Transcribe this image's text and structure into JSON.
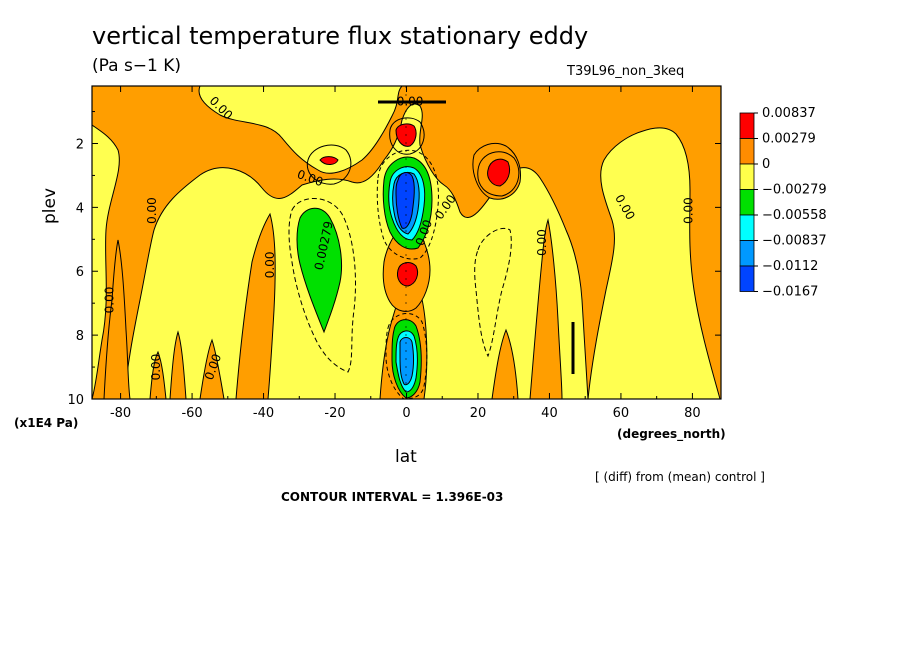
{
  "chart_data": {
    "type": "contour",
    "title": "vertical temperature flux stationary eddy",
    "units": "(Pa s−1 K)",
    "run_label": "T39L96_non_3keq",
    "xlabel": "lat",
    "xunit": "(degrees_north)",
    "ylabel": "plev",
    "yunit": "(x1E4 Pa)",
    "diff_note": "[ (diff) from (mean) control ]",
    "contour_interval_text": "CONTOUR INTERVAL = 1.396E-03",
    "xlim": [
      -88,
      88
    ],
    "ylim": [
      10,
      0.2
    ],
    "x_ticks": [
      -80,
      -60,
      -40,
      -20,
      0,
      20,
      40,
      60,
      80
    ],
    "y_ticks": [
      2,
      4,
      6,
      8,
      10
    ],
    "legend": {
      "placement": "right",
      "labels": [
        "0.00837",
        "0.00279",
        "0",
        "−0.00279",
        "−0.00558",
        "−0.00837",
        "−0.0112",
        "−0.0167"
      ],
      "colors": [
        "#ff0000",
        "#ff8c00",
        "#ffff4a",
        "#00e000",
        "#00ffff",
        "#0099ff",
        "#0044ff"
      ]
    },
    "contour_labels": [
      {
        "text": "0.00",
        "lat": -52,
        "p": 0.9,
        "angle": 45
      },
      {
        "text": "0.00",
        "lat": 1,
        "p": 0.7,
        "angle": 0
      },
      {
        "text": "0.00",
        "lat": -27,
        "p": 3.1,
        "angle": 20
      },
      {
        "text": "0.00",
        "lat": -71,
        "p": 4.1,
        "angle": -90
      },
      {
        "text": "0.00",
        "lat": -38,
        "p": 5.8,
        "angle": -90
      },
      {
        "text": "0.00",
        "lat": -83,
        "p": 6.9,
        "angle": -90
      },
      {
        "text": "0.00",
        "lat": -70,
        "p": 9.0,
        "angle": -90
      },
      {
        "text": "0.00",
        "lat": -54,
        "p": 9.0,
        "angle": -70
      },
      {
        "text": "0.00",
        "lat": 11,
        "p": 4.0,
        "angle": -55
      },
      {
        "text": "0.00",
        "lat": 5,
        "p": 4.8,
        "angle": -70
      },
      {
        "text": "0.00",
        "lat": 38,
        "p": 5.1,
        "angle": -90
      },
      {
        "text": "0.00",
        "lat": 61,
        "p": 4.0,
        "angle": 60
      },
      {
        "text": "0.00",
        "lat": 79,
        "p": 4.1,
        "angle": -90
      },
      {
        "text": "0.00279",
        "lat": -23,
        "p": 5.2,
        "angle": -78
      }
    ],
    "features": [
      {
        "sign": "positive",
        "level": "0.00837",
        "lat": 0,
        "p": 1.5
      },
      {
        "sign": "positive",
        "level": "0.00837",
        "lat": 0,
        "p": 6.1
      },
      {
        "sign": "positive",
        "level": "0.00837",
        "lat": -21,
        "p": 2.5
      },
      {
        "sign": "positive",
        "level": "0.00837",
        "lat": 26,
        "p": 2.7
      },
      {
        "sign": "negative",
        "level": "−0.0167",
        "lat": -1,
        "p": 3.5
      },
      {
        "sign": "negative",
        "level": "−0.0112",
        "lat": -1,
        "p": 8.7
      },
      {
        "sign": "negative",
        "level": "−0.00558",
        "lat": -25,
        "p": 5.5
      }
    ]
  }
}
